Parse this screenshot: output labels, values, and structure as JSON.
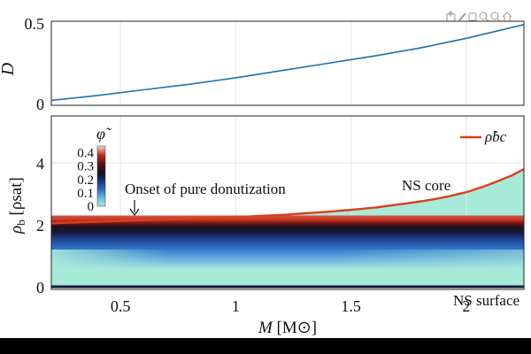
{
  "chart_data": [
    {
      "type": "line",
      "title": "",
      "xlabel": "",
      "ylabel": "D",
      "xlim": [
        0.2,
        2.25
      ],
      "ylim": [
        0,
        0.5
      ],
      "yticks": [
        "0",
        "0.5"
      ],
      "grid": true,
      "series": [
        {
          "color": "#1f6fb2",
          "x": [
            0.2,
            0.4,
            0.6,
            0.8,
            1.0,
            1.2,
            1.4,
            1.6,
            1.8,
            2.0,
            2.25
          ],
          "y": [
            0.02,
            0.05,
            0.085,
            0.12,
            0.16,
            0.205,
            0.25,
            0.295,
            0.345,
            0.405,
            0.49
          ]
        }
      ]
    },
    {
      "type": "heatmap",
      "title": "",
      "xlabel": "M [M⊙]",
      "xlabel_main": "M",
      "xlabel_unit": "[M⊙]",
      "ylabel": "ρb [ρsat]",
      "ylabel_sym": "ρ",
      "ylabel_sub": "b",
      "ylabel_unit": "[ρsat]",
      "xlim": [
        0.2,
        2.25
      ],
      "ylim": [
        0,
        5.4
      ],
      "xticks": [
        "0.5",
        "1",
        "1.5",
        "2"
      ],
      "yticks": [
        "0",
        "2",
        "4"
      ],
      "colorbar": {
        "label": "φ̃",
        "range": [
          0,
          0.45
        ],
        "ticks": [
          "0.4",
          "0.3",
          "0.2",
          "0.1",
          "0"
        ]
      },
      "legend": {
        "position": "top-right",
        "label": "ρ̂bc",
        "color": "#d9401c"
      },
      "core_density_series": {
        "name": "ρ̂bc",
        "x": [
          0.2,
          0.4,
          0.6,
          0.8,
          1.0,
          1.2,
          1.4,
          1.6,
          1.8,
          1.9,
          2.0,
          2.1,
          2.2,
          2.25
        ],
        "y": [
          2.05,
          2.1,
          2.15,
          2.2,
          2.25,
          2.32,
          2.42,
          2.55,
          2.75,
          2.88,
          3.05,
          3.3,
          3.6,
          3.8
        ]
      },
      "peak_density_band": {
        "center": 2.0,
        "half_width": 0.22
      },
      "annotations": [
        {
          "text": "Onset of pure donutization",
          "x": 0.6,
          "y": 2.6,
          "arrow": true
        },
        {
          "text": "NS core",
          "x": 1.85,
          "y": 3.25,
          "color": "#d9401c"
        },
        {
          "text": "NS surface",
          "x": 2.12,
          "y": -0.3,
          "color": "#1a2a5a"
        }
      ]
    }
  ],
  "toolbar": {
    "icons": [
      "export-icon",
      "brush-icon",
      "zoom-in-icon",
      "pan-icon",
      "zoom-out-icon",
      "home-icon"
    ]
  }
}
